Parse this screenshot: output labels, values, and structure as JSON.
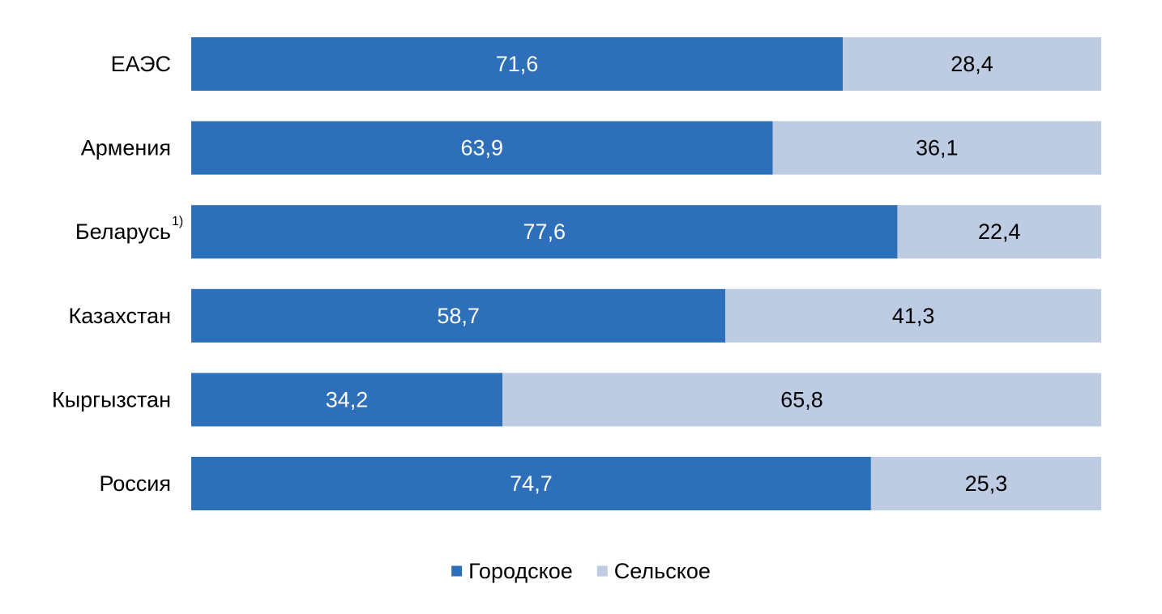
{
  "chart_data": {
    "type": "bar",
    "orientation": "horizontal",
    "stacked": true,
    "categories": [
      "ЕАЭС",
      "Армения",
      "Беларусь",
      "Казахстан",
      "Кыргызстан",
      "Россия"
    ],
    "category_footnotes": [
      "",
      "",
      "1)",
      "",
      "",
      ""
    ],
    "series": [
      {
        "name": "Городское",
        "color": "#2e6fba",
        "label_color": "#ffffff",
        "values": [
          71.6,
          63.9,
          77.6,
          58.7,
          34.2,
          74.7
        ],
        "labels": [
          "71,6",
          "63,9",
          "77,6",
          "58,7",
          "34,2",
          "74,7"
        ]
      },
      {
        "name": "Сельское",
        "color": "#bdcce3",
        "label_color": "#000000",
        "values": [
          28.4,
          36.1,
          22.4,
          41.3,
          65.8,
          25.3
        ],
        "labels": [
          "28,4",
          "36,1",
          "22,4",
          "41,3",
          "65,8",
          "25,3"
        ]
      }
    ],
    "xlim": [
      0,
      100
    ],
    "grid": false,
    "legend_position": "bottom-center",
    "title": "",
    "xlabel": "",
    "ylabel": ""
  }
}
